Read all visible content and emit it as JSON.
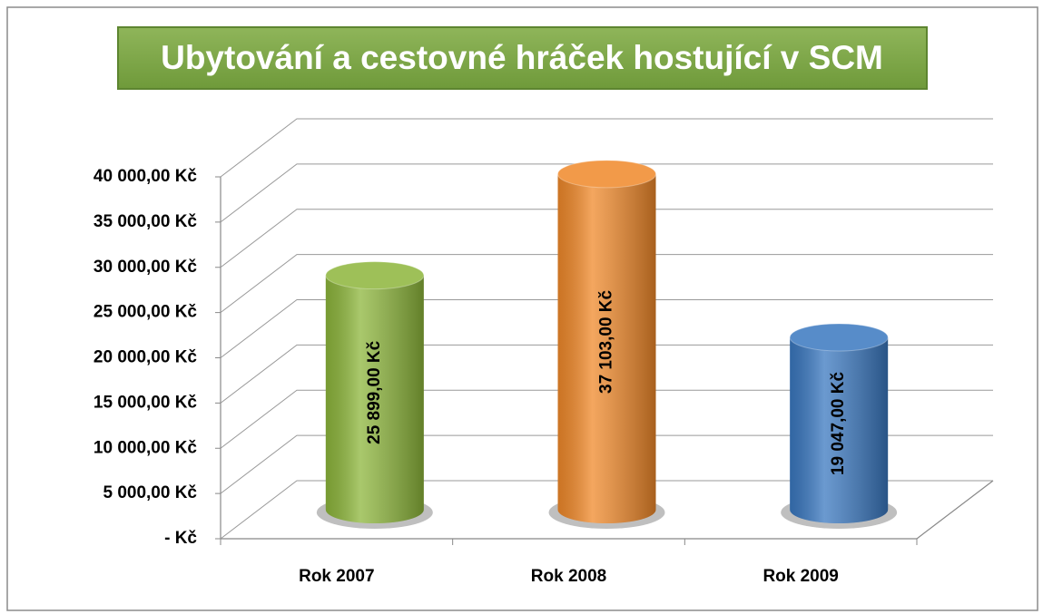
{
  "chart_data": {
    "type": "bar",
    "title": "Ubytování a cestovné hráček hostující v SCM",
    "categories": [
      "Rok 2007",
      "Rok 2008",
      "Rok 2009"
    ],
    "series": [
      {
        "name": null,
        "colors": [
          "#8db63b",
          "#f0892a",
          "#3a78c0"
        ],
        "values": [
          25899,
          37103,
          19047
        ],
        "value_labels": [
          "25 899,00 Kč",
          "37 103,00 Kč",
          "19 047,00 Kč"
        ]
      }
    ],
    "ylim": [
      0,
      40000
    ],
    "yticks": [
      {
        "value": 0,
        "label": "-  Kč"
      },
      {
        "value": 5000,
        "label": "5 000,00 Kč"
      },
      {
        "value": 10000,
        "label": "10 000,00 Kč"
      },
      {
        "value": 15000,
        "label": "15 000,00 Kč"
      },
      {
        "value": 20000,
        "label": "20 000,00 Kč"
      },
      {
        "value": 25000,
        "label": "25 000,00 Kč"
      },
      {
        "value": 30000,
        "label": "30 000,00 Kč"
      },
      {
        "value": 35000,
        "label": "35 000,00 Kč"
      },
      {
        "value": 40000,
        "label": "40 000,00 Kč"
      }
    ],
    "grid": true
  }
}
